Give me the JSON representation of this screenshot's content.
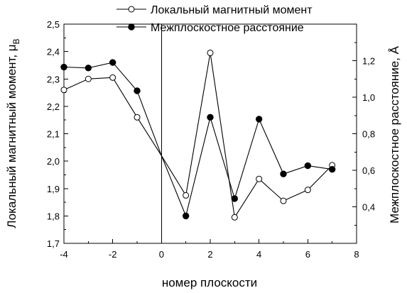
{
  "chart_data": {
    "type": "line",
    "xlabel": "номер плоскости",
    "ylabel_left": "Локальный магнитный момент, μ",
    "ylabel_left_sub": "B",
    "ylabel_right": "Межплоскостное расстояние, Å",
    "xlim": [
      -4,
      8
    ],
    "ylim_left": [
      1.7,
      2.5
    ],
    "ylim_right": [
      0.2,
      1.4
    ],
    "x_ticks": [
      -4,
      -2,
      0,
      2,
      4,
      6,
      8
    ],
    "x_tick_labels": [
      "-4",
      "-2",
      "0",
      "2",
      "4",
      "6",
      "8"
    ],
    "y_left_ticks": [
      1.7,
      1.8,
      1.9,
      2.0,
      2.1,
      2.2,
      2.3,
      2.4,
      2.5
    ],
    "y_left_tick_labels": [
      "1,7",
      "1,8",
      "1,9",
      "2,0",
      "2,1",
      "2,2",
      "2,3",
      "2,4",
      "2,5"
    ],
    "y_right_ticks": [
      0.4,
      0.6,
      0.8,
      1.0,
      1.2
    ],
    "y_right_tick_labels": [
      "0,4",
      "0,6",
      "0,8",
      "1,0",
      "1,2"
    ],
    "reference_line_x": 0,
    "legend_position": "top-center",
    "series": [
      {
        "name": "Локальный магнитный момент",
        "axis": "left",
        "marker": "open-circle",
        "x": [
          -4,
          -3,
          -2,
          -1,
          1,
          2,
          3,
          4,
          5,
          6,
          7
        ],
        "values": [
          2.26,
          2.3,
          2.305,
          2.16,
          1.875,
          2.395,
          1.795,
          1.935,
          1.855,
          1.895,
          1.985
        ]
      },
      {
        "name": "Межплоскостное расстояние",
        "axis": "right",
        "marker": "filled-circle",
        "x": [
          -4,
          -3,
          -2,
          -1,
          1,
          2,
          3,
          4,
          5,
          6,
          7
        ],
        "values": [
          1.165,
          1.16,
          1.19,
          1.035,
          0.35,
          0.89,
          0.445,
          0.88,
          0.58,
          0.625,
          0.605
        ]
      }
    ],
    "bridge_segments": [
      {
        "from_x": -1,
        "to_x": 1,
        "via_x": 0,
        "via_left": 2.02
      }
    ]
  },
  "colors": {
    "ink": "#000000",
    "background": "#ffffff"
  }
}
